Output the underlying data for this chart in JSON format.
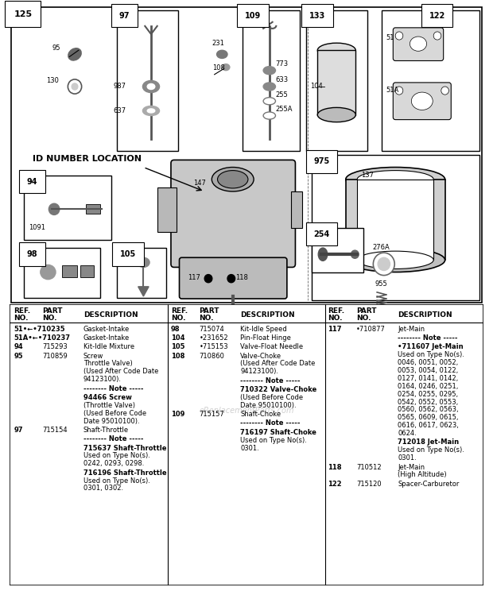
{
  "fig_width": 6.2,
  "fig_height": 7.44,
  "dpi": 100,
  "bg_color": "#ffffff",
  "col1_rows": [
    {
      "ref": "51•←•710235",
      "part": "",
      "desc": "Gasket-Intake",
      "note": false,
      "bold_desc": false
    },
    {
      "ref": "51A•←•710237",
      "part": "",
      "desc": "Gasket-Intake",
      "note": false,
      "bold_desc": false
    },
    {
      "ref": "94",
      "part": "715293",
      "desc": "Kit-Idle Mixture",
      "note": false,
      "bold_desc": false
    },
    {
      "ref": "95",
      "part": "710859",
      "desc": "Screw\nThrottle Valve)\n(Used After Code Date\n94123100).",
      "note": false,
      "bold_desc": false
    },
    {
      "ref": "",
      "part": "",
      "desc": "-------- Note -----",
      "note": true,
      "bold_desc": false
    },
    {
      "ref": "",
      "part": "",
      "desc": "94466 Screw\n(Throttle Valve)\n(Used Before Code\nDate 95010100).",
      "note": false,
      "bold_desc": true
    },
    {
      "ref": "97",
      "part": "715154",
      "desc": "Shaft-Throttle",
      "note": false,
      "bold_desc": false
    },
    {
      "ref": "",
      "part": "",
      "desc": "-------- Note -----",
      "note": true,
      "bold_desc": false
    },
    {
      "ref": "",
      "part": "",
      "desc": "715637 Shaft-Throttle\nUsed on Type No(s).\n0242, 0293, 0298.",
      "note": false,
      "bold_desc": true
    },
    {
      "ref": "",
      "part": "",
      "desc": "716196 Shaft-Throttle\nUsed on Type No(s).\n0301, 0302.",
      "note": false,
      "bold_desc": true
    }
  ],
  "col2_rows": [
    {
      "ref": "98",
      "part": "715074",
      "desc": "Kit-Idle Speed",
      "note": false,
      "bold_desc": false
    },
    {
      "ref": "104",
      "part": "•231652",
      "desc": "Pin-Float Hinge",
      "note": false,
      "bold_desc": false
    },
    {
      "ref": "105",
      "part": "•715153",
      "desc": "Valve-Float Needle",
      "note": false,
      "bold_desc": false
    },
    {
      "ref": "108",
      "part": "710860",
      "desc": "Valve-Choke\n(Used After Code Date\n94123100).",
      "note": false,
      "bold_desc": false
    },
    {
      "ref": "",
      "part": "",
      "desc": "-------- Note -----",
      "note": true,
      "bold_desc": false
    },
    {
      "ref": "",
      "part": "",
      "desc": "710322 Valve-Choke\n(Used Before Code\nDate 95010100).",
      "note": false,
      "bold_desc": true
    },
    {
      "ref": "109",
      "part": "715157",
      "desc": "Shaft-Choke",
      "note": false,
      "bold_desc": false
    },
    {
      "ref": "",
      "part": "",
      "desc": "-------- Note -----",
      "note": true,
      "bold_desc": false
    },
    {
      "ref": "",
      "part": "",
      "desc": "716197 Shaft-Choke\nUsed on Type No(s).\n0301.",
      "note": false,
      "bold_desc": true
    }
  ],
  "col3_rows": [
    {
      "ref": "117",
      "part": "•710877",
      "desc": "Jet-Main",
      "note": false,
      "bold_desc": false
    },
    {
      "ref": "",
      "part": "",
      "desc": "-------- Note -----",
      "note": true,
      "bold_desc": false
    },
    {
      "ref": "",
      "part": "",
      "desc": "•711607 Jet-Main\nUsed on Type No(s).\n0046, 0051, 0052,\n0053, 0054, 0122,\n0127, 0141, 0142,\n0164, 0246, 0251,\n0254, 0255, 0295,\n0542, 0552, 0553,\n0560, 0562, 0563,\n0565, 0609, 0615,\n0616, 0617, 0623,\n0624.",
      "note": false,
      "bold_desc": true
    },
    {
      "ref": "",
      "part": "",
      "desc": "712018 Jet-Main\nUsed on Type No(s).\n0301.",
      "note": false,
      "bold_desc": true
    },
    {
      "ref": "118",
      "part": "710512",
      "desc": "Jet-Main\n(High Altitude)",
      "note": false,
      "bold_desc": false
    },
    {
      "ref": "122",
      "part": "715120",
      "desc": "Spacer-Carburetor",
      "note": false,
      "bold_desc": false
    }
  ]
}
